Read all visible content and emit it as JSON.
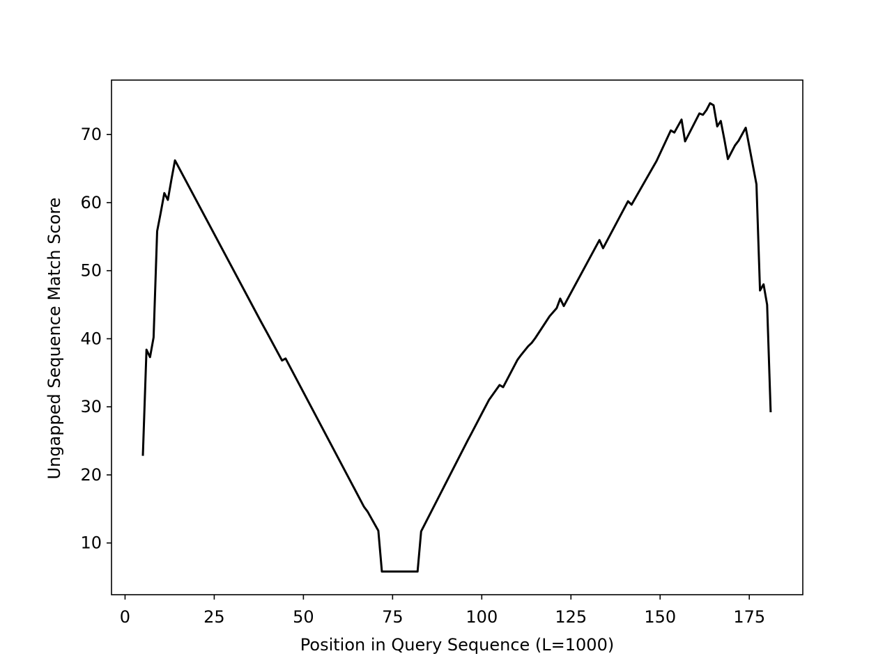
{
  "chart_data": {
    "type": "line",
    "title": "",
    "xlabel": "Position in Query Sequence (L=1000)",
    "ylabel": "Ungapped Sequence Match Score",
    "xlim": [
      -3.8,
      190
    ],
    "ylim": [
      2.4,
      78
    ],
    "x_ticks": [
      0,
      25,
      50,
      75,
      100,
      125,
      150,
      175
    ],
    "y_ticks": [
      10,
      20,
      30,
      40,
      50,
      60,
      70
    ],
    "grid": false,
    "legend": "none",
    "series": [
      {
        "color": "#000000",
        "x": [
          5,
          6,
          7,
          8,
          9,
          10,
          11,
          12,
          13,
          14,
          38,
          40,
          44,
          45,
          67,
          68,
          71,
          72,
          82,
          83,
          96,
          97,
          99,
          100,
          102,
          105,
          106,
          110,
          111,
          113,
          114,
          115,
          118,
          119,
          121,
          122,
          123,
          133,
          134,
          141,
          142,
          148,
          149,
          153,
          154,
          156,
          157,
          161,
          162,
          163,
          164,
          165,
          166,
          167,
          168,
          169,
          170,
          171,
          172,
          174,
          177,
          178,
          179,
          180,
          181
        ],
        "y": [
          22.8,
          38.4,
          37.3,
          40.2,
          55.8,
          58.5,
          61.4,
          60.4,
          63.4,
          66.2,
          42.6,
          40.7,
          36.8,
          37.1,
          15.3,
          14.6,
          11.8,
          5.8,
          5.8,
          11.7,
          25.0,
          26.0,
          28.0,
          29.0,
          31.0,
          33.2,
          32.9,
          36.9,
          37.6,
          38.9,
          39.4,
          40.1,
          42.5,
          43.3,
          44.5,
          45.9,
          44.8,
          54.5,
          53.3,
          60.2,
          59.7,
          65.2,
          66.1,
          70.6,
          70.3,
          72.2,
          69.0,
          73.1,
          72.9,
          73.6,
          74.6,
          74.3,
          71.2,
          72.0,
          69.3,
          66.4,
          67.4,
          68.4,
          69.1,
          71.0,
          62.7,
          47.1,
          48.0,
          45.0,
          29.2
        ]
      }
    ]
  }
}
